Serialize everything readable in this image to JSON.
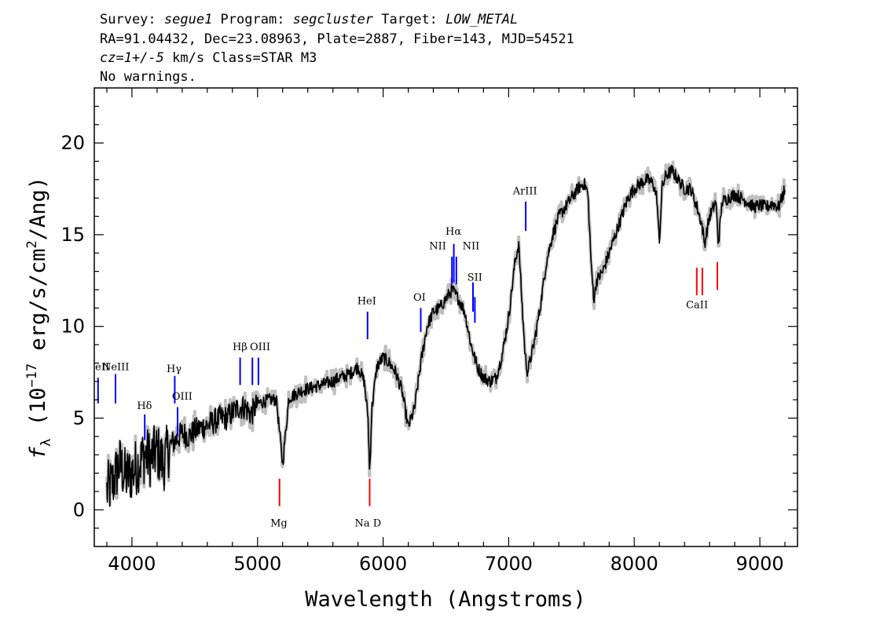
{
  "header": {
    "line1": [
      {
        "text": "Survey: ",
        "italic": false
      },
      {
        "text": "segue1",
        "italic": true
      },
      {
        "text": " Program: ",
        "italic": false
      },
      {
        "text": "segcluster",
        "italic": true
      },
      {
        "text": " Target: ",
        "italic": false
      },
      {
        "text": "LOW_METAL",
        "italic": true
      }
    ],
    "line2": "RA=91.04432, Dec=23.08963, Plate=2887, Fiber=143, MJD=54521",
    "line3": [
      {
        "text": "cz=1+/-5",
        "italic": true
      },
      {
        "text": " km/s Class=STAR M3",
        "italic": false
      }
    ],
    "line4": "No warnings."
  },
  "chart_data": {
    "type": "line",
    "xlabel": "Wavelength (Angstroms)",
    "ylabel_parts": [
      "f",
      "λ",
      " (10",
      "−17",
      " erg/s/cm",
      "2",
      "/Ang)"
    ],
    "xlim": [
      3700,
      9300
    ],
    "ylim": [
      -2,
      23
    ],
    "x_ticks": [
      4000,
      5000,
      6000,
      7000,
      8000,
      9000
    ],
    "x_tick_labels": [
      "4000",
      "5000",
      "6000",
      "7000",
      "8000",
      "9000"
    ],
    "y_ticks": [
      0,
      5,
      10,
      15,
      20
    ],
    "y_tick_labels": [
      "0",
      "5",
      "10",
      "15",
      "20"
    ],
    "grid": false,
    "series": [
      {
        "x": [
          3800,
          3850,
          3900,
          3950,
          4000,
          4050,
          4100,
          4150,
          4200,
          4250,
          4300,
          4350,
          4400,
          4450,
          4500,
          4550,
          4600,
          4650,
          4700,
          4750,
          4800,
          4850,
          4900,
          4950,
          5000,
          5050,
          5100,
          5150,
          5200,
          5250,
          5300,
          5350,
          5400,
          5450,
          5500,
          5550,
          5600,
          5650,
          5700,
          5750,
          5800,
          5850,
          5880,
          5893,
          5910,
          5950,
          6000,
          6050,
          6100,
          6150,
          6200,
          6250,
          6300,
          6350,
          6400,
          6450,
          6500,
          6550,
          6600,
          6650,
          6700,
          6750,
          6800,
          6850,
          6900,
          6950,
          7000,
          7050,
          7080,
          7100,
          7130,
          7150,
          7200,
          7250,
          7300,
          7350,
          7400,
          7450,
          7500,
          7550,
          7600,
          7630,
          7660,
          7680,
          7700,
          7750,
          7800,
          7850,
          7900,
          7950,
          8000,
          8050,
          8100,
          8150,
          8180,
          8200,
          8220,
          8250,
          8300,
          8350,
          8400,
          8450,
          8500,
          8540,
          8560,
          8600,
          8650,
          8670,
          8700,
          8750,
          8800,
          8850,
          8900,
          8950,
          9000,
          9050,
          9100,
          9150,
          9200
        ],
        "y": [
          1.0,
          1.5,
          2.5,
          1.8,
          2.0,
          2.5,
          3.0,
          2.8,
          3.2,
          2.5,
          3.5,
          3.8,
          4.2,
          4.0,
          4.3,
          4.5,
          4.6,
          4.8,
          5.0,
          5.0,
          5.3,
          5.6,
          5.6,
          5.2,
          5.8,
          5.9,
          6.0,
          6.0,
          2.5,
          6.1,
          6.3,
          6.5,
          6.6,
          6.7,
          6.8,
          6.9,
          7.0,
          7.2,
          7.3,
          7.5,
          7.8,
          7.0,
          5.0,
          2.0,
          5.5,
          7.8,
          8.3,
          8.0,
          7.5,
          6.5,
          4.5,
          5.5,
          8.0,
          10.0,
          10.8,
          11.0,
          11.5,
          12.0,
          11.5,
          10.8,
          9.0,
          7.8,
          7.2,
          7.0,
          7.2,
          8.5,
          10.5,
          13.5,
          14.5,
          12.0,
          8.5,
          7.5,
          9.0,
          11.0,
          13.5,
          15.0,
          16.0,
          16.5,
          17.0,
          17.5,
          17.8,
          17.3,
          13.0,
          11.5,
          12.5,
          13.0,
          14.0,
          15.0,
          16.0,
          17.0,
          17.5,
          17.8,
          18.0,
          17.8,
          17.0,
          14.5,
          17.5,
          18.2,
          18.5,
          18.0,
          17.5,
          17.5,
          16.5,
          15.5,
          14.5,
          16.0,
          16.8,
          14.5,
          16.8,
          17.0,
          17.2,
          17.0,
          16.8,
          16.5,
          16.6,
          16.5,
          16.7,
          16.5,
          17.5
        ]
      }
    ],
    "lines": [
      {
        "label": "HeII",
        "wave": 3730,
        "color": "#0000ff",
        "y1": 5.8,
        "y2": 7.2
      },
      {
        "label": "NeIII",
        "wave": 3869,
        "color": "#0000ff",
        "y1": 5.8,
        "y2": 7.4
      },
      {
        "label": "Hδ",
        "wave": 4102,
        "color": "#0000ff",
        "y1": 3.8,
        "y2": 5.2
      },
      {
        "label": "Hγ",
        "wave": 4341,
        "color": "#0000ff",
        "y1": 5.8,
        "y2": 7.3
      },
      {
        "label": "OIII",
        "wave": 4363,
        "color": "#0000ff",
        "y1": 4.0,
        "y2": 5.6
      },
      {
        "label": "Hβ",
        "wave": 4861,
        "color": "#0000ff",
        "y1": 6.8,
        "y2": 8.3
      },
      {
        "label": "OIII",
        "wave": 4959,
        "color": "#0000ff",
        "y1": 6.8,
        "y2": 8.3
      },
      {
        "label": "OIII",
        "wave": 5007,
        "color": "#0000ff",
        "y1": 6.8,
        "y2": 8.3
      },
      {
        "label": "HeI",
        "wave": 5876,
        "color": "#0000ff",
        "y1": 9.3,
        "y2": 10.8
      },
      {
        "label": "OI",
        "wave": 6300,
        "color": "#0000ff",
        "y1": 9.7,
        "y2": 11.0
      },
      {
        "label": "NII",
        "wave": 6548,
        "color": "#0000ff",
        "y1": 12.3,
        "y2": 13.8
      },
      {
        "label": "Hα",
        "wave": 6563,
        "color": "#0000ff",
        "y1": 12.4,
        "y2": 14.5
      },
      {
        "label": "NII",
        "wave": 6583,
        "color": "#0000ff",
        "y1": 12.3,
        "y2": 13.8
      },
      {
        "label": "SII",
        "wave": 6716,
        "color": "#0000ff",
        "y1": 10.8,
        "y2": 12.4
      },
      {
        "label": "SII",
        "wave": 6731,
        "color": "#0000ff",
        "y1": 10.2,
        "y2": 11.6
      },
      {
        "label": "ArIII",
        "wave": 7136,
        "color": "#0000ff",
        "y1": 15.2,
        "y2": 16.8
      },
      {
        "label": "Mg",
        "wave": 5175,
        "color": "#ff0000",
        "y1": 0.2,
        "y2": 1.7
      },
      {
        "label": "Na D",
        "wave": 5893,
        "color": "#ff0000",
        "y1": 0.2,
        "y2": 1.7
      },
      {
        "label": "CaII",
        "wave": 8498,
        "color": "#ff0000",
        "y1": 11.7,
        "y2": 13.2
      },
      {
        "label": "CaII",
        "wave": 8542,
        "color": "#ff0000",
        "y1": 11.7,
        "y2": 13.2
      },
      {
        "label": "CaII",
        "wave": 8662,
        "color": "#ff0000",
        "y1": 12.0,
        "y2": 13.5
      }
    ],
    "line_labels": [
      {
        "text": "HeII",
        "wave": 3728,
        "y": 7.6,
        "color": "#000000"
      },
      {
        "text": "NeIII",
        "wave": 3870,
        "y": 7.6,
        "color": "#000000"
      },
      {
        "text": "Hδ",
        "wave": 4100,
        "y": 5.5,
        "color": "#000000"
      },
      {
        "text": "Hγ",
        "wave": 4335,
        "y": 7.5,
        "color": "#000000"
      },
      {
        "text": "OIII",
        "wave": 4400,
        "y": 6.0,
        "color": "#000000"
      },
      {
        "text": "Hβ",
        "wave": 4860,
        "y": 8.7,
        "color": "#000000"
      },
      {
        "text": "OIII",
        "wave": 5020,
        "y": 8.7,
        "color": "#000000"
      },
      {
        "text": "HeI",
        "wave": 5870,
        "y": 11.2,
        "color": "#000000"
      },
      {
        "text": "OI",
        "wave": 6290,
        "y": 11.4,
        "color": "#000000"
      },
      {
        "text": "NII",
        "wave": 6435,
        "y": 14.2,
        "color": "#000000"
      },
      {
        "text": "Hα",
        "wave": 6560,
        "y": 15.0,
        "color": "#000000"
      },
      {
        "text": "NII",
        "wave": 6700,
        "y": 14.2,
        "color": "#000000"
      },
      {
        "text": "SII",
        "wave": 6730,
        "y": 12.5,
        "color": "#000000"
      },
      {
        "text": "ArIII",
        "wave": 7130,
        "y": 17.2,
        "color": "#000000"
      },
      {
        "text": "Mg",
        "wave": 5170,
        "y": -0.9,
        "color": "#000000"
      },
      {
        "text": "Na D",
        "wave": 5880,
        "y": -0.9,
        "color": "#000000"
      },
      {
        "text": "CaII",
        "wave": 8500,
        "y": 11.0,
        "color": "#000000"
      }
    ],
    "colors": {
      "flux": "#000000",
      "error_band": "#bfbfbf",
      "emission": "#0000ff",
      "absorption": "#ff0000"
    }
  }
}
